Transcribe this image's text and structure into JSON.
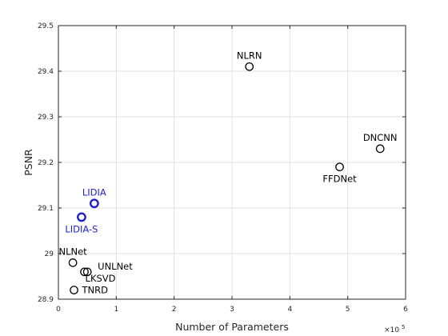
{
  "chart_data": {
    "type": "scatter",
    "title": "",
    "xlabel": "Number of Parameters",
    "ylabel": "PSNR",
    "x_exponent_label": "×10",
    "x_exponent_power": "5",
    "xlim": [
      0,
      6
    ],
    "ylim": [
      28.9,
      29.5
    ],
    "x_ticks": [
      "0",
      "1",
      "2",
      "3",
      "4",
      "5",
      "6"
    ],
    "y_ticks": [
      "28.9",
      "29",
      "29.1",
      "29.2",
      "29.3",
      "29.4",
      "29.5"
    ],
    "grid": true,
    "colors": {
      "default": "#000000",
      "highlight": "#1f1fd0",
      "grid": "#e0e0e0",
      "axis": "#262626"
    },
    "points": [
      {
        "label": "NLRN",
        "x": 3.3,
        "y": 29.41,
        "highlight": false,
        "label_pos": "above"
      },
      {
        "label": "DNCNN",
        "x": 5.56,
        "y": 29.23,
        "highlight": false,
        "label_pos": "above"
      },
      {
        "label": "FFDNet",
        "x": 4.86,
        "y": 29.19,
        "highlight": false,
        "label_pos": "below"
      },
      {
        "label": "LIDIA",
        "x": 0.62,
        "y": 29.11,
        "highlight": true,
        "label_pos": "above"
      },
      {
        "label": "LIDIA-S",
        "x": 0.4,
        "y": 29.08,
        "highlight": true,
        "label_pos": "below"
      },
      {
        "label": "NLNet",
        "x": 0.25,
        "y": 28.98,
        "highlight": false,
        "label_pos": "above"
      },
      {
        "label": "UNLNet",
        "x": 0.5,
        "y": 28.96,
        "highlight": false,
        "label_pos": "right-up"
      },
      {
        "label": "LKSVD",
        "x": 0.45,
        "y": 28.96,
        "highlight": false,
        "label_pos": "right-down"
      },
      {
        "label": "TNRD",
        "x": 0.27,
        "y": 28.92,
        "highlight": false,
        "label_pos": "right"
      }
    ]
  }
}
